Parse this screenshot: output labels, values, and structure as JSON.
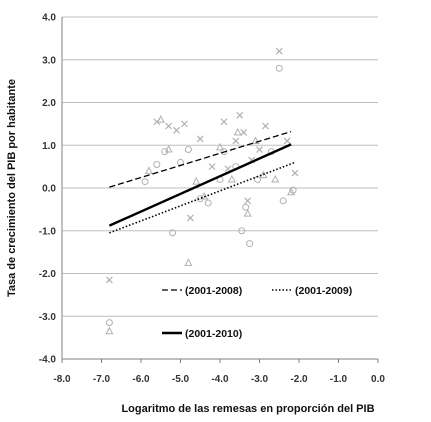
{
  "chart_data": {
    "type": "scatter",
    "title": "",
    "xlabel": "Logaritmo de las remesas en proporción del PIB",
    "ylabel": "Tasa de crecimiento del PIB por habitante",
    "xlim": [
      -8.0,
      0.0
    ],
    "ylim": [
      -4.0,
      4.0
    ],
    "xticks": [
      "-8.0",
      "-7.0",
      "-6.0",
      "-5.0",
      "-4.0",
      "-3.0",
      "-2.0",
      "-1.0",
      "0.0"
    ],
    "yticks": [
      "4.0",
      "3.0",
      "2.0",
      "1.0",
      "0.0",
      "-1.0",
      "-2.0",
      "-3.0",
      "-4.0"
    ],
    "grid": "horizontal",
    "legend_position": "bottom",
    "colors": {
      "points": "#b0b0b0",
      "lines": "#000000",
      "grid": "#bfbfbf",
      "axis": "#808080"
    },
    "series": [
      {
        "name": "(2001-2008)",
        "line_style": "dashed",
        "marker": "x",
        "fit": [
          {
            "x": -6.8,
            "y": 0.02
          },
          {
            "x": -2.2,
            "y": 1.32
          }
        ],
        "points": [
          {
            "x": -6.8,
            "y": -2.15
          },
          {
            "x": -5.6,
            "y": 1.55
          },
          {
            "x": -5.3,
            "y": 1.45
          },
          {
            "x": -5.1,
            "y": 1.35
          },
          {
            "x": -4.9,
            "y": 1.5
          },
          {
            "x": -4.75,
            "y": -0.7
          },
          {
            "x": -4.5,
            "y": 1.15
          },
          {
            "x": -4.2,
            "y": 0.5
          },
          {
            "x": -3.9,
            "y": 1.55
          },
          {
            "x": -3.8,
            "y": 0.45
          },
          {
            "x": -3.6,
            "y": 1.1
          },
          {
            "x": -3.5,
            "y": 1.7
          },
          {
            "x": -3.4,
            "y": 1.3
          },
          {
            "x": -3.3,
            "y": -0.3
          },
          {
            "x": -3.2,
            "y": 0.65
          },
          {
            "x": -3.0,
            "y": 0.9
          },
          {
            "x": -2.85,
            "y": 1.45
          },
          {
            "x": -2.5,
            "y": 3.2
          },
          {
            "x": -2.3,
            "y": 1.1
          },
          {
            "x": -2.1,
            "y": 0.35
          }
        ]
      },
      {
        "name": "(2001-2009)",
        "line_style": "dotted",
        "marker": "triangle",
        "fit": [
          {
            "x": -6.8,
            "y": -1.05
          },
          {
            "x": -2.1,
            "y": 0.6
          }
        ],
        "points": [
          {
            "x": -6.8,
            "y": -3.35
          },
          {
            "x": -5.8,
            "y": 0.4
          },
          {
            "x": -5.5,
            "y": 1.6
          },
          {
            "x": -5.3,
            "y": 0.9
          },
          {
            "x": -4.8,
            "y": -1.75
          },
          {
            "x": -4.6,
            "y": 0.15
          },
          {
            "x": -4.4,
            "y": -0.2
          },
          {
            "x": -4.0,
            "y": 0.95
          },
          {
            "x": -3.7,
            "y": 0.2
          },
          {
            "x": -3.55,
            "y": 1.3
          },
          {
            "x": -3.3,
            "y": -0.6
          },
          {
            "x": -3.1,
            "y": 1.1
          },
          {
            "x": -2.9,
            "y": 0.3
          },
          {
            "x": -2.6,
            "y": 0.2
          },
          {
            "x": -2.2,
            "y": -0.1
          }
        ]
      },
      {
        "name": "(2001-2010)",
        "line_style": "solid",
        "marker": "circle",
        "fit": [
          {
            "x": -6.8,
            "y": -0.88
          },
          {
            "x": -2.2,
            "y": 1.02
          }
        ],
        "points": [
          {
            "x": -6.8,
            "y": -3.15
          },
          {
            "x": -5.9,
            "y": 0.15
          },
          {
            "x": -5.6,
            "y": 0.55
          },
          {
            "x": -5.4,
            "y": 0.85
          },
          {
            "x": -5.2,
            "y": -1.05
          },
          {
            "x": -5.0,
            "y": 0.6
          },
          {
            "x": -4.8,
            "y": 0.9
          },
          {
            "x": -4.5,
            "y": -0.25
          },
          {
            "x": -4.3,
            "y": -0.35
          },
          {
            "x": -4.0,
            "y": 0.2
          },
          {
            "x": -3.9,
            "y": 0.85
          },
          {
            "x": -3.6,
            "y": 0.5
          },
          {
            "x": -3.45,
            "y": -1.0
          },
          {
            "x": -3.35,
            "y": -0.45
          },
          {
            "x": -3.25,
            "y": -1.3
          },
          {
            "x": -3.05,
            "y": 0.2
          },
          {
            "x": -2.7,
            "y": 0.85
          },
          {
            "x": -2.5,
            "y": 2.8
          },
          {
            "x": -2.4,
            "y": -0.3
          },
          {
            "x": -2.15,
            "y": -0.05
          }
        ]
      }
    ]
  }
}
